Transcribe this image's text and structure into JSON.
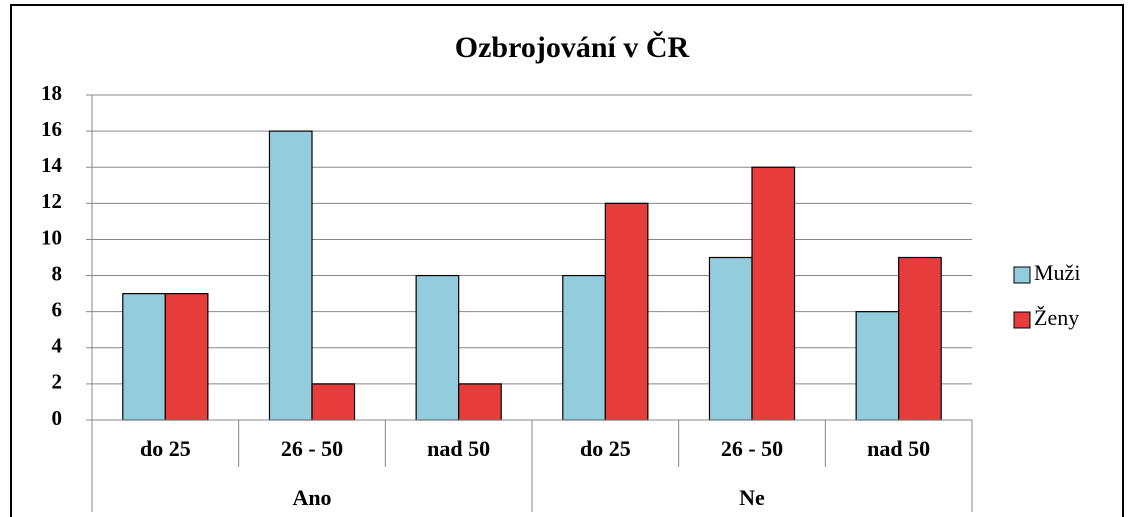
{
  "chart_data": {
    "type": "bar",
    "title": "Ozbrojování  v ČR",
    "groups": [
      {
        "name": "Ano",
        "categories": [
          "do 25",
          "26 - 50",
          "nad 50"
        ]
      },
      {
        "name": "Ne",
        "categories": [
          "do 25",
          "26 - 50",
          "nad 50"
        ]
      }
    ],
    "series": [
      {
        "name": "Muži",
        "color": "#93cddd",
        "values": [
          7,
          16,
          8,
          8,
          9,
          6
        ]
      },
      {
        "name": "Ženy",
        "color": "#e63c3c",
        "values": [
          7,
          2,
          2,
          12,
          14,
          9
        ]
      }
    ],
    "ylim": [
      0,
      18
    ],
    "yticks": [
      0,
      2,
      4,
      6,
      8,
      10,
      12,
      14,
      16,
      18
    ],
    "grid": true,
    "legend": "right"
  }
}
